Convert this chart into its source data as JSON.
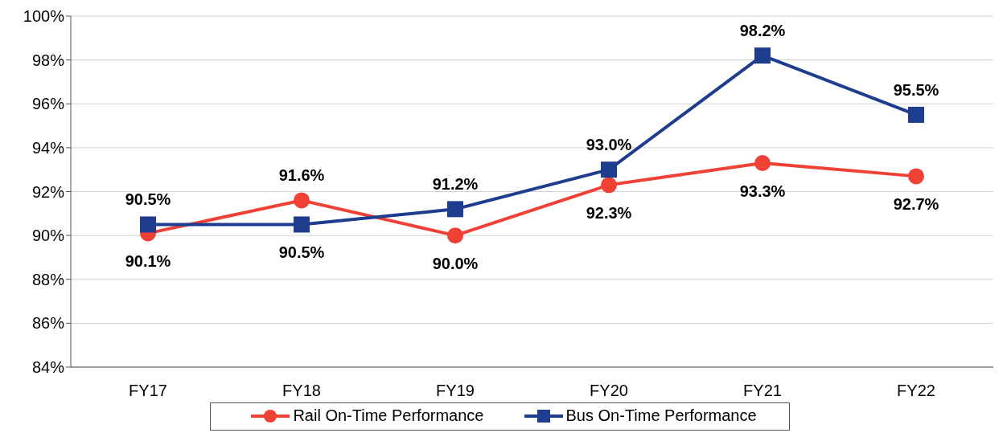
{
  "chart_data": {
    "type": "line",
    "categories": [
      "FY17",
      "FY18",
      "FY19",
      "FY20",
      "FY21",
      "FY22"
    ],
    "series": [
      {
        "name": "Rail On-Time Performance",
        "color": "#ef4136",
        "marker": "circle",
        "values": [
          90.1,
          91.6,
          90.0,
          92.3,
          93.3,
          92.7
        ],
        "value_labels": [
          "90.1%",
          "91.6%",
          "90.0%",
          "92.3%",
          "93.3%",
          "92.7%"
        ]
      },
      {
        "name": "Bus On-Time Performance",
        "color": "#1f3d8f",
        "marker": "square",
        "values": [
          90.5,
          90.5,
          91.2,
          93.0,
          98.2,
          95.5
        ],
        "value_labels": [
          "90.5%",
          "90.5%",
          "91.2%",
          "93.0%",
          "98.2%",
          "95.5%"
        ]
      }
    ],
    "ylim": [
      84,
      100
    ],
    "yticks": [
      {
        "value": 84,
        "label": "84%"
      },
      {
        "value": 86,
        "label": "86%"
      },
      {
        "value": 88,
        "label": "88%"
      },
      {
        "value": 90,
        "label": "90%"
      },
      {
        "value": 92,
        "label": "92%"
      },
      {
        "value": 94,
        "label": "94%"
      },
      {
        "value": 96,
        "label": "96%"
      },
      {
        "value": 98,
        "label": "98%"
      },
      {
        "value": 100,
        "label": "100%"
      }
    ],
    "grid": "y",
    "legend": "bottom"
  }
}
